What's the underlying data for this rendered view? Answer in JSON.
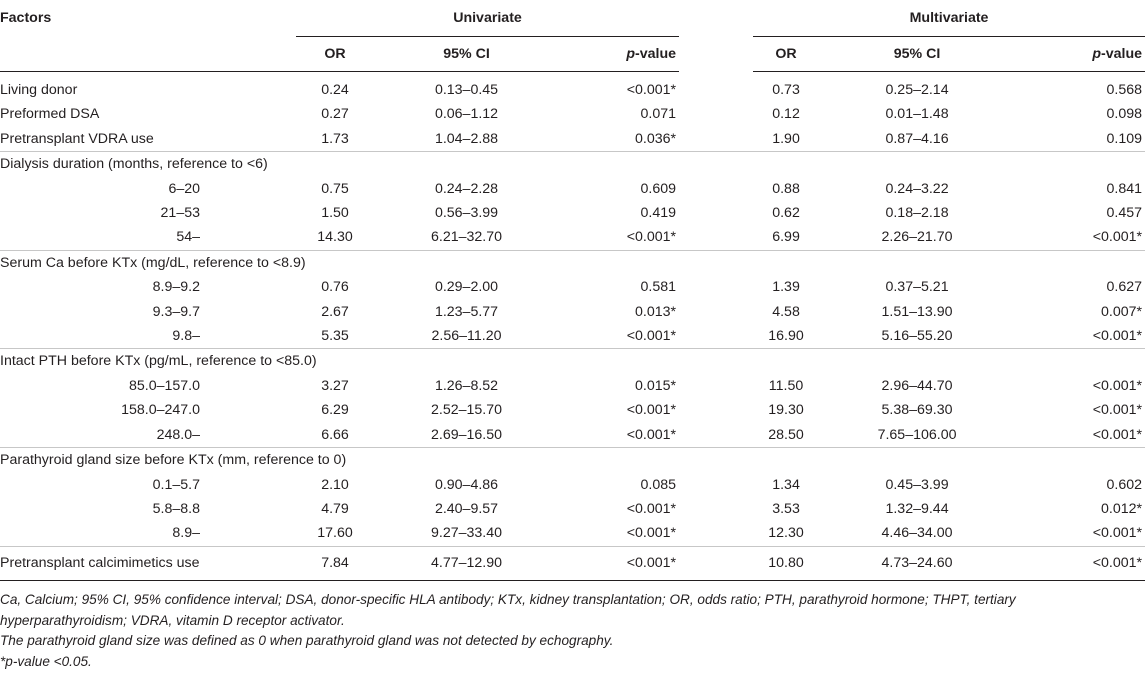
{
  "header": {
    "factors": "Factors",
    "univariate": "Univariate",
    "multivariate": "Multivariate",
    "or": "OR",
    "ci": "95% CI",
    "p_prefix": "p",
    "p_suffix": "-value"
  },
  "rows": {
    "living_donor": {
      "label": "Living donor",
      "u_or": "0.24",
      "u_ci": "0.13–0.45",
      "u_p": "<0.001*",
      "m_or": "0.73",
      "m_ci": "0.25–2.14",
      "m_p": "0.568"
    },
    "preformed_dsa": {
      "label": "Preformed DSA",
      "u_or": "0.27",
      "u_ci": "0.06–1.12",
      "u_p": "0.071",
      "m_or": "0.12",
      "m_ci": "0.01–1.48",
      "m_p": "0.098"
    },
    "vdra": {
      "label": "Pretransplant VDRA use",
      "u_or": "1.73",
      "u_ci": "1.04–2.88",
      "u_p": "0.036*",
      "m_or": "1.90",
      "m_ci": "0.87–4.16",
      "m_p": "0.109"
    },
    "dialysis_title": "Dialysis duration (months, reference to <6)",
    "dialysis": [
      {
        "label": "6–20",
        "u_or": "0.75",
        "u_ci": "0.24–2.28",
        "u_p": "0.609",
        "m_or": "0.88",
        "m_ci": "0.24–3.22",
        "m_p": "0.841"
      },
      {
        "label": "21–53",
        "u_or": "1.50",
        "u_ci": "0.56–3.99",
        "u_p": "0.419",
        "m_or": "0.62",
        "m_ci": "0.18–2.18",
        "m_p": "0.457"
      },
      {
        "label": "54–",
        "u_or": "14.30",
        "u_ci": "6.21–32.70",
        "u_p": "<0.001*",
        "m_or": "6.99",
        "m_ci": "2.26–21.70",
        "m_p": "<0.001*"
      }
    ],
    "ca_title": "Serum Ca before KTx (mg/dL, reference to <8.9)",
    "ca": [
      {
        "label": "8.9–9.2",
        "u_or": "0.76",
        "u_ci": "0.29–2.00",
        "u_p": "0.581",
        "m_or": "1.39",
        "m_ci": "0.37–5.21",
        "m_p": "0.627"
      },
      {
        "label": "9.3–9.7",
        "u_or": "2.67",
        "u_ci": "1.23–5.77",
        "u_p": "0.013*",
        "m_or": "4.58",
        "m_ci": "1.51–13.90",
        "m_p": "0.007*"
      },
      {
        "label": "9.8–",
        "u_or": "5.35",
        "u_ci": "2.56–11.20",
        "u_p": "<0.001*",
        "m_or": "16.90",
        "m_ci": "5.16–55.20",
        "m_p": "<0.001*"
      }
    ],
    "pth_title": "Intact PTH before KTx (pg/mL, reference to <85.0)",
    "pth": [
      {
        "label": "85.0–157.0",
        "u_or": "3.27",
        "u_ci": "1.26–8.52",
        "u_p": "0.015*",
        "m_or": "11.50",
        "m_ci": "2.96–44.70",
        "m_p": "<0.001*"
      },
      {
        "label": "158.0–247.0",
        "u_or": "6.29",
        "u_ci": "2.52–15.70",
        "u_p": "<0.001*",
        "m_or": "19.30",
        "m_ci": "5.38–69.30",
        "m_p": "<0.001*"
      },
      {
        "label": "248.0–",
        "u_or": "6.66",
        "u_ci": "2.69–16.50",
        "u_p": "<0.001*",
        "m_or": "28.50",
        "m_ci": "7.65–106.00",
        "m_p": "<0.001*"
      }
    ],
    "gland_title": "Parathyroid gland size before KTx (mm, reference to 0)",
    "gland": [
      {
        "label": "0.1–5.7",
        "u_or": "2.10",
        "u_ci": "0.90–4.86",
        "u_p": "0.085",
        "m_or": "1.34",
        "m_ci": "0.45–3.99",
        "m_p": "0.602"
      },
      {
        "label": "5.8–8.8",
        "u_or": "4.79",
        "u_ci": "2.40–9.57",
        "u_p": "<0.001*",
        "m_or": "3.53",
        "m_ci": "1.32–9.44",
        "m_p": "0.012*"
      },
      {
        "label": "8.9–",
        "u_or": "17.60",
        "u_ci": "9.27–33.40",
        "u_p": "<0.001*",
        "m_or": "12.30",
        "m_ci": "4.46–34.00",
        "m_p": "<0.001*"
      }
    ],
    "calcimimetics": {
      "label": "Pretransplant calcimimetics use",
      "u_or": "7.84",
      "u_ci": "4.77–12.90",
      "u_p": "<0.001*",
      "m_or": "10.80",
      "m_ci": "4.73–24.60",
      "m_p": "<0.001*"
    }
  },
  "notes": {
    "abbrev_line1": "Ca, Calcium; 95% CI, 95% confidence interval; DSA, donor-specific HLA antibody; KTx, kidney transplantation; OR, odds ratio; PTH, parathyroid hormone; THPT, tertiary",
    "abbrev_line2": "hyperparathyroidism; VDRA, vitamin D receptor activator.",
    "gland_note": "The parathyroid gland size was defined as 0 when parathyroid gland was not detected by echography.",
    "pvalue_note": "*p-value <0.05."
  }
}
